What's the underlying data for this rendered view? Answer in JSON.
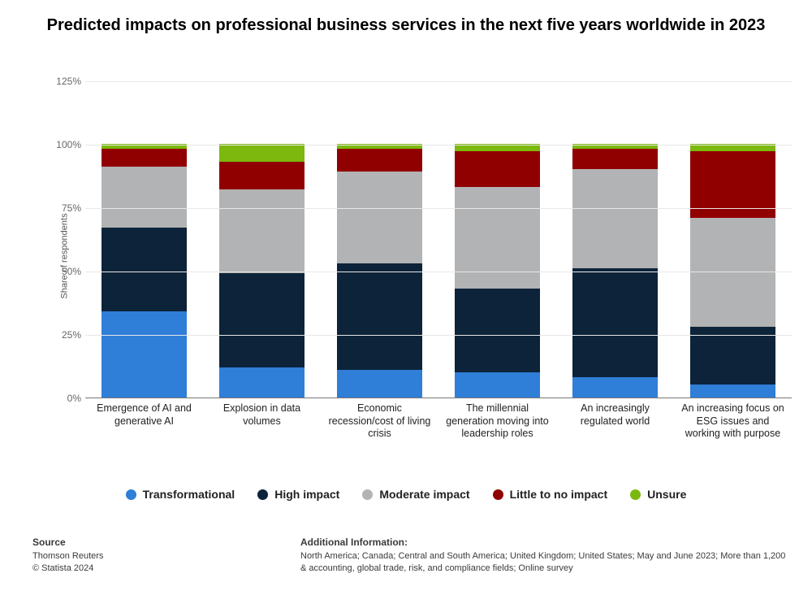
{
  "title": "Predicted impacts on professional business services in the next five years worldwide in 2023",
  "chart": {
    "type": "stacked-bar",
    "yaxis_title": "Share of respondents",
    "ylim": [
      0,
      125
    ],
    "yticks": [
      0,
      25,
      50,
      75,
      100,
      125
    ],
    "ytick_labels": [
      "0%",
      "25%",
      "50%",
      "75%",
      "100%",
      "125%"
    ],
    "background_color": "#ffffff",
    "grid_color": "#e8e8e8",
    "axis_color": "#777777",
    "label_fontsize": 12.5,
    "tick_fontsize": 12,
    "bar_width_pct": 72,
    "categories": [
      "Emergence of AI and generative AI",
      "Explosion in data volumes",
      "Economic recession/cost of living crisis",
      "The millennial generation moving into leadership roles",
      "An increasingly regulated world",
      "An increasing focus on ESG issues and working with purpose"
    ],
    "series": [
      {
        "name": "Transformational",
        "color": "#2f7ed8",
        "values": [
          34,
          12,
          11,
          10,
          8,
          5
        ]
      },
      {
        "name": "High impact",
        "color": "#0d233a",
        "values": [
          33,
          37,
          42,
          33,
          43,
          23
        ]
      },
      {
        "name": "Moderate impact",
        "color": "#b2b3b4",
        "values": [
          24,
          33,
          36,
          40,
          39,
          43
        ]
      },
      {
        "name": "Little to no impact",
        "color": "#910000",
        "values": [
          7,
          11,
          9,
          14,
          8,
          26
        ]
      },
      {
        "name": "Unsure",
        "color": "#7cb80d",
        "values": [
          2,
          7,
          2,
          3,
          2,
          3
        ]
      }
    ]
  },
  "legend": {
    "items": [
      "Transformational",
      "High impact",
      "Moderate impact",
      "Little to no impact",
      "Unsure"
    ],
    "fontsize": 14,
    "font_weight": "bold"
  },
  "footer": {
    "source_heading": "Source",
    "source_line1": "Thomson Reuters",
    "source_line2": "© Statista 2024",
    "addl_heading": "Additional Information:",
    "addl_line1": "North America; Canada; Central and South America; United Kingdom; United States; May and June 2023; More than 1,200",
    "addl_line2": "& accounting, global trade, risk, and compliance fields; Online survey"
  }
}
